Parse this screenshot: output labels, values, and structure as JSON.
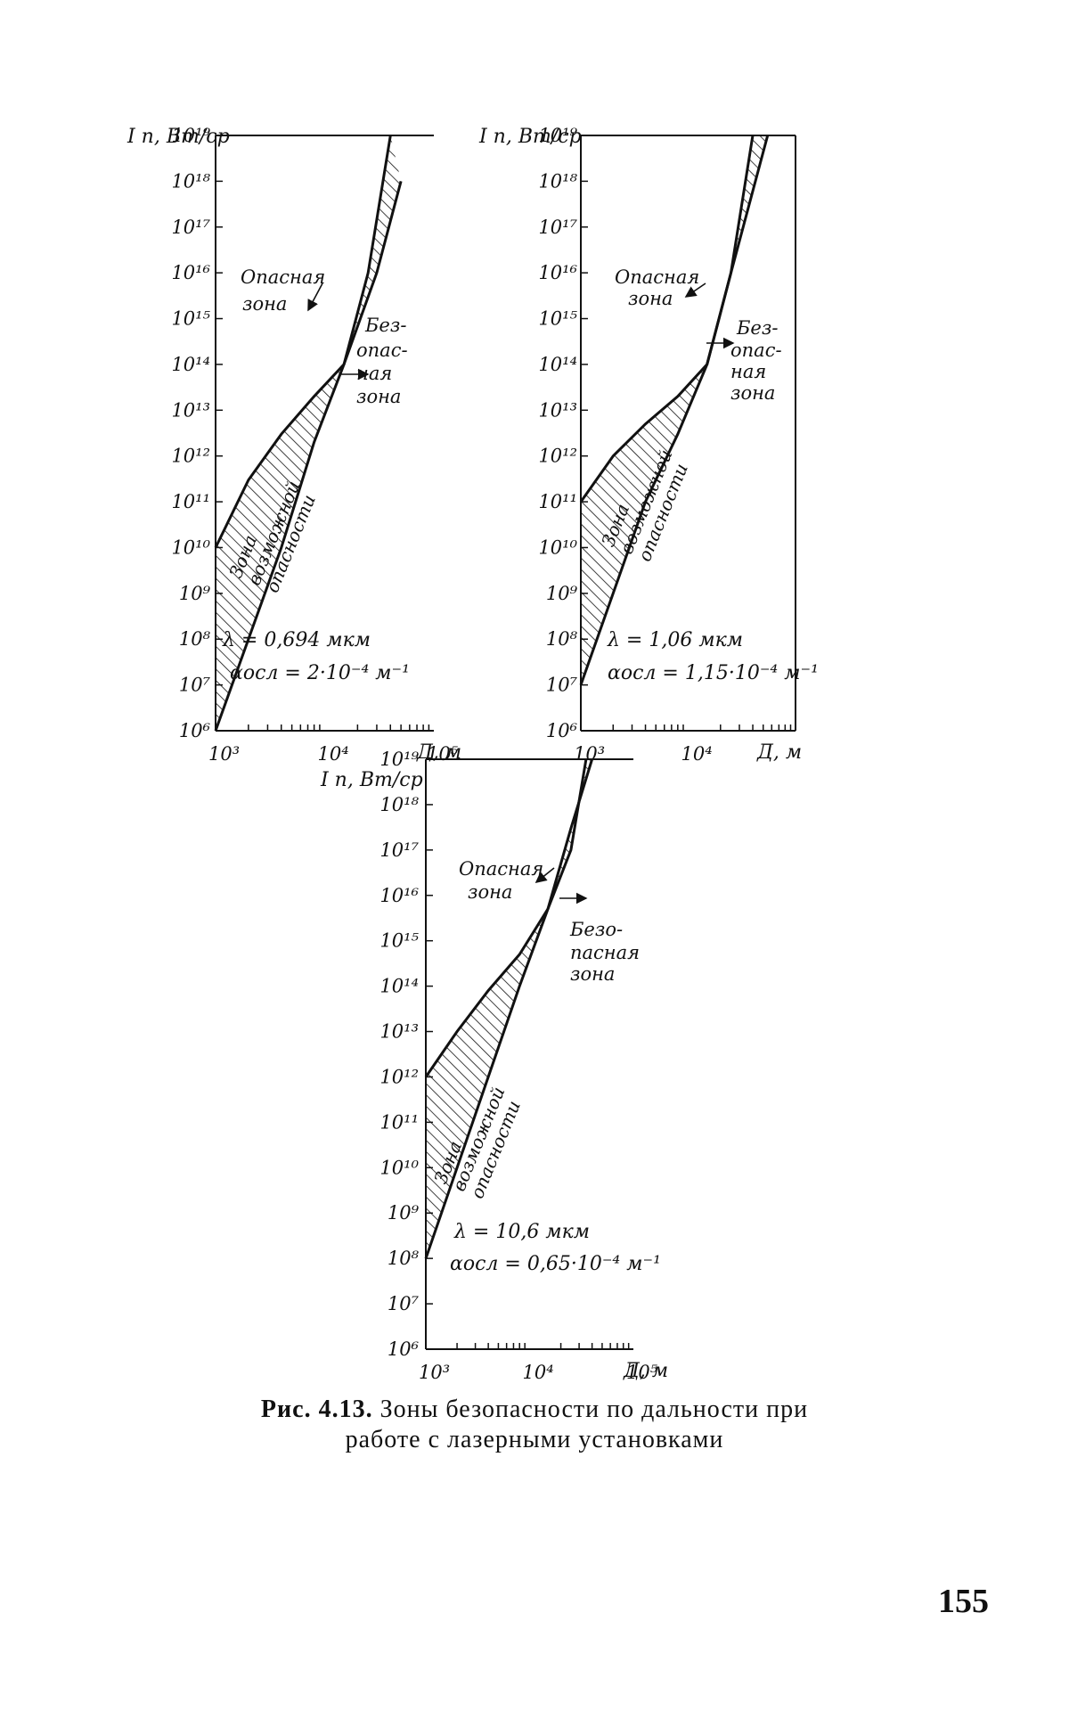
{
  "figure": {
    "caption_label": "Рис. 4.13.",
    "caption_line1": "Зоны безопасности по дальности при",
    "caption_line2": "работе с лазерными установками"
  },
  "page_number": "155",
  "chart_data": [
    {
      "type": "area",
      "ylabel": "I п, Вт/ср",
      "xlabel": "Д, м",
      "xscale": "log",
      "yscale": "log",
      "xlim": [
        1000,
        100000
      ],
      "ylim": [
        1000000.0,
        1e+19
      ],
      "x_tick_labels": [
        "10³",
        "10⁴",
        "10⁵"
      ],
      "y_tick_labels": [
        "10⁶",
        "10⁷",
        "10⁸",
        "10⁹",
        "10¹⁰",
        "10¹¹",
        "10¹²",
        "10¹³",
        "10¹⁴",
        "10¹⁵",
        "10¹⁶",
        "10¹⁷",
        "10¹⁸",
        "10¹⁹"
      ],
      "params_line1": "λ = 0,694 мкм",
      "params_line2": "αосл = 2·10⁻⁴ м⁻¹",
      "zones": {
        "dangerous": "Опасная зона",
        "safe": "Безопасная зона",
        "possible_danger": "Зона возможной опасности"
      },
      "series": [
        {
          "x": [
            1000,
            2000,
            4000,
            8000,
            15000,
            25000,
            40000
          ],
          "y": [
            10000000000.0,
            300000000000.0,
            3000000000000.0,
            20000000000000.0,
            100000000000000.0,
            1e+16,
            1e+19
          ]
        },
        {
          "x": [
            1000,
            2000,
            4000,
            8000,
            15000,
            30000,
            50000
          ],
          "y": [
            1000000.0,
            100000000.0,
            10000000000.0,
            2000000000000.0,
            100000000000000.0,
            1e+16,
            1e+18
          ]
        }
      ]
    },
    {
      "type": "area",
      "ylabel": "I п, Вт/ср",
      "xlabel": "Д, м",
      "xscale": "log",
      "yscale": "log",
      "xlim": [
        1000,
        100000
      ],
      "ylim": [
        1000000.0,
        1e+19
      ],
      "x_tick_labels": [
        "10³",
        "10⁴"
      ],
      "y_tick_labels": [
        "10⁶",
        "10⁷",
        "10⁸",
        "10⁹",
        "10¹⁰",
        "10¹¹",
        "10¹²",
        "10¹³",
        "10¹⁴",
        "10¹⁵",
        "10¹⁶",
        "10¹⁷",
        "10¹⁸",
        "10¹⁹"
      ],
      "params_line1": "λ = 1,06 мкм",
      "params_line2": "αосл = 1,15·10⁻⁴ м⁻¹",
      "zones": {
        "dangerous": "Опасная зона",
        "safe": "Безопасная зона",
        "possible_danger": "Зона возможной опасности"
      },
      "series": [
        {
          "x": [
            1000,
            2000,
            4000,
            8000,
            15000,
            25000,
            40000
          ],
          "y": [
            100000000000.0,
            1000000000000.0,
            5000000000000.0,
            20000000000000.0,
            100000000000000.0,
            1e+16,
            1e+19
          ]
        },
        {
          "x": [
            1000,
            2000,
            4000,
            8000,
            15000,
            25000,
            55000
          ],
          "y": [
            10000000.0,
            1000000000.0,
            100000000000.0,
            3000000000000.0,
            100000000000000.0,
            1e+16,
            1e+19
          ]
        }
      ]
    },
    {
      "type": "area",
      "ylabel": "I п, Вт/ср",
      "xlabel": "Д, м",
      "xscale": "log",
      "yscale": "log",
      "xlim": [
        1000,
        100000
      ],
      "ylim": [
        1000000.0,
        1e+19
      ],
      "x_tick_labels": [
        "10³",
        "10⁴",
        "10⁵"
      ],
      "y_tick_labels": [
        "10⁶",
        "10⁷",
        "10⁸",
        "10⁹",
        "10¹⁰",
        "10¹¹",
        "10¹²",
        "10¹³",
        "10¹⁴",
        "10¹⁵",
        "10¹⁶",
        "10¹⁷",
        "10¹⁸",
        "10¹⁹"
      ],
      "params_line1": "λ = 10,6 мкм",
      "params_line2": "αосл = 0,65·10⁻⁴ м⁻¹",
      "zones": {
        "dangerous": "Опасная зона",
        "safe": "Безопасная зона",
        "possible_danger": "Зона возможной опасности"
      },
      "series": [
        {
          "x": [
            1000,
            2000,
            4000,
            8000,
            15000,
            25000,
            35000
          ],
          "y": [
            1000000000000.0,
            10000000000000.0,
            80000000000000.0,
            500000000000000.0,
            5000000000000000.0,
            1e+17,
            1e+19
          ]
        },
        {
          "x": [
            1000,
            2000,
            4000,
            8000,
            15000,
            25000,
            40000
          ],
          "y": [
            100000000.0,
            10000000000.0,
            1000000000000.0,
            100000000000000.0,
            5000000000000000.0,
            3e+17,
            1e+19
          ]
        }
      ]
    }
  ]
}
